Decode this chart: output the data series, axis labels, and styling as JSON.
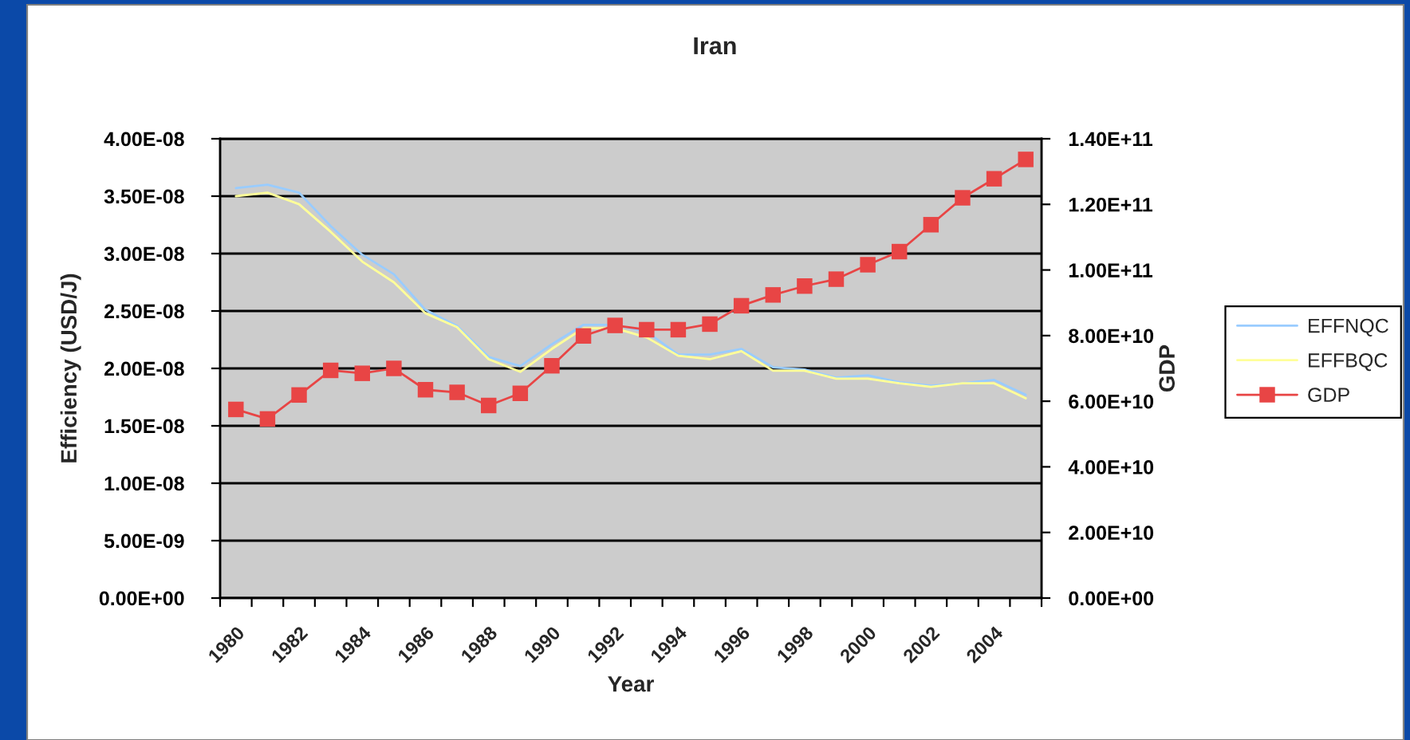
{
  "chart_data": {
    "type": "line",
    "title": "Iran",
    "xlabel": "Year",
    "ylabel": "Efficiency (USD/J)",
    "y2label": "GDP",
    "categories": [
      "1980",
      null,
      "1982",
      null,
      "1984",
      null,
      "1986",
      null,
      "1988",
      null,
      "1990",
      null,
      "1992",
      null,
      "1994",
      null,
      "1996",
      null,
      "1998",
      null,
      "2000",
      null,
      "2002",
      null,
      "2004",
      null
    ],
    "series": [
      {
        "name": "EFFNQC",
        "color": "#99ccff",
        "values": [
          3.57e-08,
          3.6e-08,
          3.53e-08,
          3.24e-08,
          2.99e-08,
          2.82e-08,
          2.51e-08,
          2.37e-08,
          2.1e-08,
          2.02e-08,
          2.21e-08,
          2.38e-08,
          2.38e-08,
          2.32e-08,
          2.12e-08,
          2.12e-08,
          2.17e-08,
          2.01e-08,
          1.99e-08,
          1.92e-08,
          1.94e-08,
          1.88e-08,
          1.85e-08,
          1.87e-08,
          1.9e-08,
          1.77e-08
        ]
      },
      {
        "name": "EFFBQC",
        "color": "#ffff99",
        "values": [
          3.5e-08,
          3.53e-08,
          3.43e-08,
          3.19e-08,
          2.93e-08,
          2.75e-08,
          2.48e-08,
          2.36e-08,
          2.08e-08,
          1.97e-08,
          2.17e-08,
          2.35e-08,
          2.35e-08,
          2.27e-08,
          2.11e-08,
          2.08e-08,
          2.15e-08,
          1.98e-08,
          1.98e-08,
          1.91e-08,
          1.91e-08,
          1.87e-08,
          1.84e-08,
          1.87e-08,
          1.87e-08,
          1.74e-08
        ]
      },
      {
        "name": "GDP",
        "color": "#e84545",
        "axis": "y2",
        "marker": "square",
        "values": [
          57500000000.0,
          54600000000.0,
          61900000000.0,
          69400000000.0,
          68500000000.0,
          70000000000.0,
          63500000000.0,
          62700000000.0,
          58700000000.0,
          62400000000.0,
          70800000000.0,
          79900000000.0,
          83100000000.0,
          81800000000.0,
          81800000000.0,
          83500000000.0,
          89100000000.0,
          92400000000.0,
          95100000000.0,
          97200000000.0,
          101600000000.0,
          105600000000.0,
          113800000000.0,
          122000000000.0,
          127800000000.0,
          133700000000.0
        ]
      }
    ],
    "ylim": [
      0,
      4e-08
    ],
    "yticks": [
      {
        "value": 0,
        "label": "0.00E+00"
      },
      {
        "value": 5e-09,
        "label": "5.00E-09"
      },
      {
        "value": 1e-08,
        "label": "1.00E-08"
      },
      {
        "value": 1.5e-08,
        "label": "1.50E-08"
      },
      {
        "value": 2e-08,
        "label": "2.00E-08"
      },
      {
        "value": 2.5e-08,
        "label": "2.50E-08"
      },
      {
        "value": 3e-08,
        "label": "3.00E-08"
      },
      {
        "value": 3.5e-08,
        "label": "3.50E-08"
      },
      {
        "value": 4e-08,
        "label": "4.00E-08"
      }
    ],
    "y2lim": [
      0,
      140000000000.0
    ],
    "y2ticks": [
      {
        "value": 0,
        "label": "0.00E+00"
      },
      {
        "value": 20000000000.0,
        "label": "2.00E+10"
      },
      {
        "value": 40000000000.0,
        "label": "4.00E+10"
      },
      {
        "value": 60000000000.0,
        "label": "6.00E+10"
      },
      {
        "value": 80000000000.0,
        "label": "8.00E+10"
      },
      {
        "value": 100000000000.0,
        "label": "1.00E+11"
      },
      {
        "value": 120000000000.0,
        "label": "1.20E+11"
      },
      {
        "value": 140000000000.0,
        "label": "1.40E+11"
      }
    ],
    "grid": "y",
    "legend": "right"
  }
}
